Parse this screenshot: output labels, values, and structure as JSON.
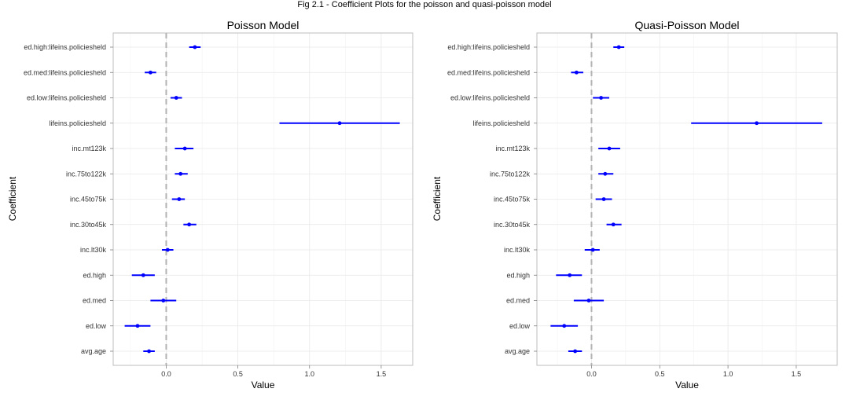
{
  "figure_title": "Fig 2.1 - Coefficient Plots for the poisson and quasi-poisson model",
  "chart_data": [
    {
      "type": "scatter",
      "subtype": "coefficient-plot",
      "title": "Poisson Model",
      "xlabel": "Value",
      "ylabel": "Coefficient",
      "xlim": [
        -0.37,
        1.72
      ],
      "xticks": [
        0.0,
        0.5,
        1.0,
        1.5
      ],
      "xtick_labels": [
        "0.0",
        "0.5",
        "1.0",
        "1.5"
      ],
      "reference_line": 0,
      "grid": true,
      "color": "#0000ff",
      "categories": [
        "ed.high:lifeins.policiesheld",
        "ed.med:lifeins.policiesheld",
        "ed.low:lifeins.policiesheld",
        "lifeins.policiesheld",
        "inc.mt123k",
        "inc.75to122k",
        "inc.45to75k",
        "inc.30to45k",
        "inc.lt30k",
        "ed.high",
        "ed.med",
        "ed.low",
        "avg.age"
      ],
      "estimates": [
        0.2,
        -0.11,
        0.07,
        1.21,
        0.13,
        0.1,
        0.09,
        0.16,
        0.01,
        -0.16,
        -0.02,
        -0.2,
        -0.12
      ],
      "lower": [
        0.16,
        -0.15,
        0.03,
        0.79,
        0.06,
        0.06,
        0.04,
        0.12,
        -0.03,
        -0.24,
        -0.11,
        -0.29,
        -0.16
      ],
      "upper": [
        0.24,
        -0.07,
        0.11,
        1.63,
        0.19,
        0.15,
        0.13,
        0.21,
        0.05,
        -0.08,
        0.07,
        -0.11,
        -0.08
      ]
    },
    {
      "type": "scatter",
      "subtype": "coefficient-plot",
      "title": "Quasi-Poisson Model",
      "xlabel": "Value",
      "ylabel": "Coefficient",
      "xlim": [
        -0.4,
        1.8
      ],
      "xticks": [
        0.0,
        0.5,
        1.0,
        1.5
      ],
      "xtick_labels": [
        "0.0",
        "0.5",
        "1.0",
        "1.5"
      ],
      "reference_line": 0,
      "grid": true,
      "color": "#0000ff",
      "categories": [
        "ed.high:lifeins.policiesheld",
        "ed.med:lifeins.policiesheld",
        "ed.low:lifeins.policiesheld",
        "lifeins.policiesheld",
        "inc.mt123k",
        "inc.75to122k",
        "inc.45to75k",
        "inc.30to45k",
        "inc.lt30k",
        "ed.high",
        "ed.med",
        "ed.low",
        "avg.age"
      ],
      "estimates": [
        0.2,
        -0.11,
        0.07,
        1.21,
        0.13,
        0.1,
        0.09,
        0.16,
        0.01,
        -0.16,
        -0.02,
        -0.2,
        -0.12
      ],
      "lower": [
        0.16,
        -0.15,
        0.01,
        0.73,
        0.05,
        0.05,
        0.03,
        0.11,
        -0.05,
        -0.26,
        -0.13,
        -0.3,
        -0.17
      ],
      "upper": [
        0.24,
        -0.06,
        0.13,
        1.69,
        0.21,
        0.16,
        0.15,
        0.22,
        0.06,
        -0.07,
        0.09,
        -0.1,
        -0.07
      ]
    }
  ]
}
